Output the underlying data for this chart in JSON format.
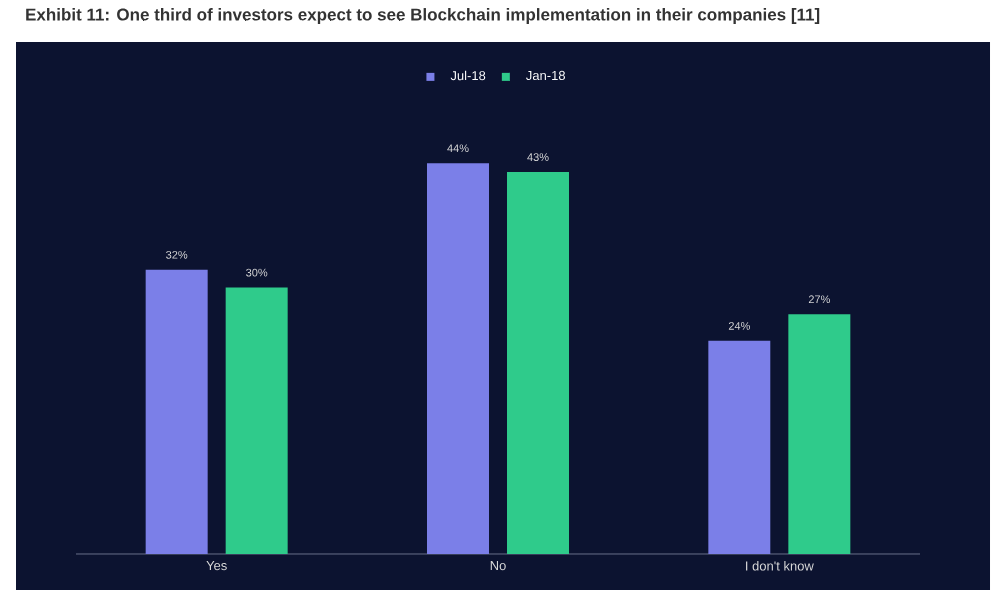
{
  "chart_data": {
    "type": "bar",
    "title": "Exhibit 11: One third of investors expect to see Blockchain implementation in their companies [11]",
    "categories": [
      "Yes",
      "No",
      "I don't know"
    ],
    "series": [
      {
        "name": "Jul-18",
        "color": "#7b7fe8",
        "values": [
          32,
          44,
          24
        ],
        "value_labels": [
          "32%",
          "44%",
          "24%"
        ]
      },
      {
        "name": "Jan-18",
        "color": "#2fcb8b",
        "values": [
          30,
          43,
          27
        ],
        "value_labels": [
          "30%",
          "43%",
          "27%"
        ]
      }
    ],
    "legend": "top",
    "grid": false,
    "tick_labels": "x"
  }
}
